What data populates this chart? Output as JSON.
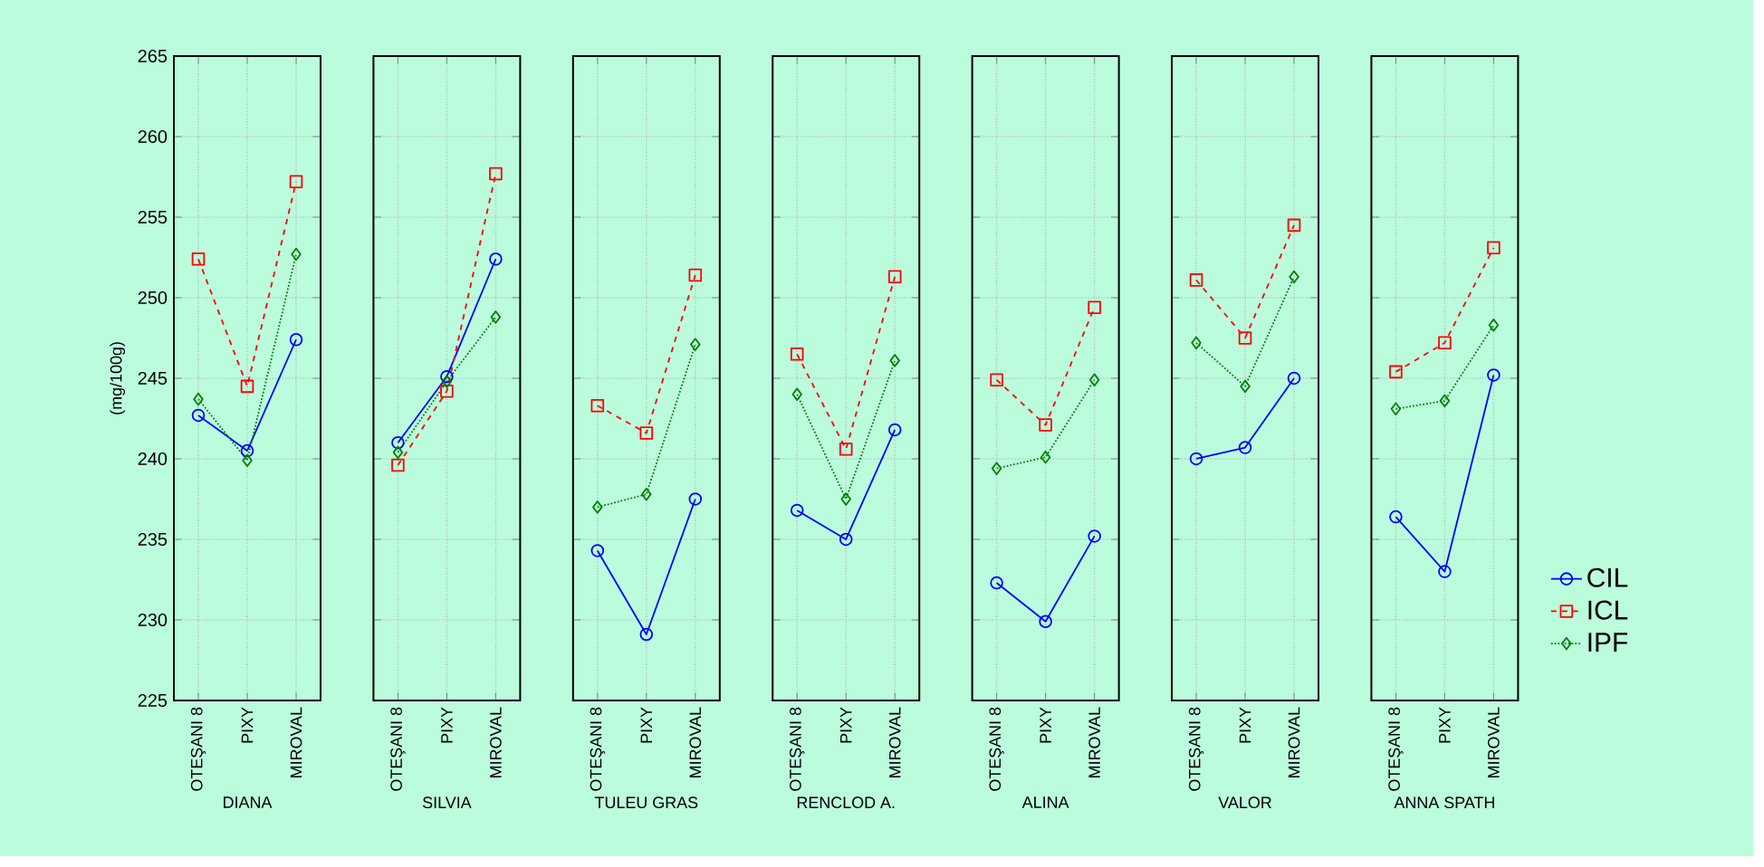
{
  "chart_data": [
    {
      "type": "line",
      "xlabel": "DIANA",
      "ylabel": "(mg/100g)",
      "categories": [
        "OTEŞANI 8",
        "PIXY",
        "MIROVAL"
      ],
      "ylim": [
        225,
        265
      ],
      "yticks": [
        225,
        230,
        235,
        240,
        245,
        250,
        255,
        260,
        265
      ],
      "grid": true,
      "series": [
        {
          "color": "#0000ff",
          "line_style": "solid",
          "marker": "circle",
          "values": [
            242.7,
            240.5,
            247.4
          ]
        },
        {
          "color": "#ff0000",
          "line_style": "dashed",
          "marker": "square",
          "values": [
            252.4,
            244.5,
            257.2
          ]
        },
        {
          "color": "#008000",
          "line_style": "dotted",
          "marker": "diamond",
          "values": [
            243.7,
            239.9,
            252.7
          ]
        }
      ]
    },
    {
      "type": "line",
      "xlabel": "SILVIA",
      "categories": [
        "OTEŞANI 8",
        "PIXY",
        "MIROVAL"
      ],
      "ylim": [
        225,
        265
      ],
      "yticks": [
        225,
        230,
        235,
        240,
        245,
        250,
        255,
        260,
        265
      ],
      "grid": true,
      "tick_labels": "x",
      "series": [
        {
          "color": "#0000ff",
          "line_style": "solid",
          "marker": "circle",
          "values": [
            241.0,
            245.1,
            252.4
          ]
        },
        {
          "color": "#ff0000",
          "line_style": "dashed",
          "marker": "square",
          "values": [
            239.6,
            244.2,
            257.7
          ]
        },
        {
          "color": "#008000",
          "line_style": "dotted",
          "marker": "diamond",
          "values": [
            240.4,
            244.8,
            248.8
          ]
        }
      ]
    },
    {
      "type": "line",
      "xlabel": "TULEU GRAS",
      "categories": [
        "OTEŞANI 8",
        "PIXY",
        "MIROVAL"
      ],
      "ylim": [
        225,
        265
      ],
      "yticks": [
        225,
        230,
        235,
        240,
        245,
        250,
        255,
        260,
        265
      ],
      "grid": true,
      "tick_labels": "x",
      "series": [
        {
          "color": "#0000ff",
          "line_style": "solid",
          "marker": "circle",
          "values": [
            234.3,
            229.1,
            237.5
          ]
        },
        {
          "color": "#ff0000",
          "line_style": "dashed",
          "marker": "square",
          "values": [
            243.3,
            241.6,
            251.4
          ]
        },
        {
          "color": "#008000",
          "line_style": "dotted",
          "marker": "diamond",
          "values": [
            237.0,
            237.8,
            247.1
          ]
        }
      ]
    },
    {
      "type": "line",
      "xlabel": "RENCLOD A.",
      "categories": [
        "OTEŞANI 8",
        "PIXY",
        "MIROVAL"
      ],
      "ylim": [
        225,
        265
      ],
      "yticks": [
        225,
        230,
        235,
        240,
        245,
        250,
        255,
        260,
        265
      ],
      "grid": true,
      "tick_labels": "x",
      "series": [
        {
          "color": "#0000ff",
          "line_style": "solid",
          "marker": "circle",
          "values": [
            236.8,
            235.0,
            241.8
          ]
        },
        {
          "color": "#ff0000",
          "line_style": "dashed",
          "marker": "square",
          "values": [
            246.5,
            240.6,
            251.3
          ]
        },
        {
          "color": "#008000",
          "line_style": "dotted",
          "marker": "diamond",
          "values": [
            244.0,
            237.5,
            246.1
          ]
        }
      ]
    },
    {
      "type": "line",
      "xlabel": "ALINA",
      "categories": [
        "OTEŞANI 8",
        "PIXY",
        "MIROVAL"
      ],
      "ylim": [
        225,
        265
      ],
      "yticks": [
        225,
        230,
        235,
        240,
        245,
        250,
        255,
        260,
        265
      ],
      "grid": true,
      "tick_labels": "x",
      "series": [
        {
          "color": "#0000ff",
          "line_style": "solid",
          "marker": "circle",
          "values": [
            232.3,
            229.9,
            235.2
          ]
        },
        {
          "color": "#ff0000",
          "line_style": "dashed",
          "marker": "square",
          "values": [
            244.9,
            242.1,
            249.4
          ]
        },
        {
          "color": "#008000",
          "line_style": "dotted",
          "marker": "diamond",
          "values": [
            239.4,
            240.1,
            244.9
          ]
        }
      ]
    },
    {
      "type": "line",
      "xlabel": "VALOR",
      "categories": [
        "OTEŞANI 8",
        "PIXY",
        "MIROVAL"
      ],
      "ylim": [
        225,
        265
      ],
      "yticks": [
        225,
        230,
        235,
        240,
        245,
        250,
        255,
        260,
        265
      ],
      "grid": true,
      "tick_labels": "x",
      "series": [
        {
          "color": "#0000ff",
          "line_style": "solid",
          "marker": "circle",
          "values": [
            240.0,
            240.7,
            245.0
          ]
        },
        {
          "color": "#ff0000",
          "line_style": "dashed",
          "marker": "square",
          "values": [
            251.1,
            247.5,
            254.5
          ]
        },
        {
          "color": "#008000",
          "line_style": "dotted",
          "marker": "diamond",
          "values": [
            247.2,
            244.5,
            251.3
          ]
        }
      ]
    },
    {
      "type": "line",
      "xlabel": "ANNA SPATH",
      "categories": [
        "OTEŞANI 8",
        "PIXY",
        "MIROVAL"
      ],
      "ylim": [
        225,
        265
      ],
      "yticks": [
        225,
        230,
        235,
        240,
        245,
        250,
        255,
        260,
        265
      ],
      "grid": true,
      "tick_labels": "x",
      "legend": "right",
      "series": [
        {
          "name": "CIL",
          "color": "#0000ff",
          "line_style": "solid",
          "marker": "circle",
          "values": [
            236.4,
            233.0,
            245.2
          ]
        },
        {
          "name": "ICL",
          "color": "#ff0000",
          "line_style": "dashed",
          "marker": "square",
          "values": [
            245.4,
            247.2,
            253.1
          ]
        },
        {
          "name": "IPF",
          "color": "#008000",
          "line_style": "dotted",
          "marker": "diamond",
          "values": [
            243.1,
            243.6,
            248.3
          ]
        }
      ]
    }
  ]
}
